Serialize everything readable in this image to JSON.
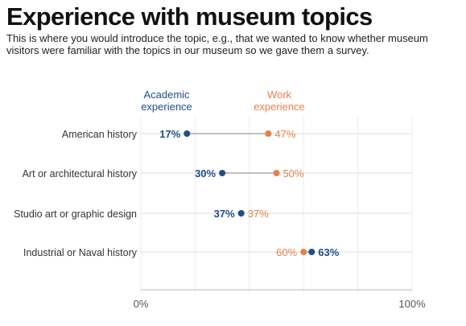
{
  "title": "Experience with museum topics",
  "subtitle": "This is where you would introduce the topic, e.g., that we wanted to know whether museum visitors were familiar with the topics in our museum so we gave them a survey.",
  "colors": {
    "academic": "#1f4e8c",
    "work": "#e8804a",
    "grid": "#dddddd",
    "connector": "#aaaaaa",
    "category_text": "#333333",
    "axis_text": "#555555"
  },
  "chart_data": {
    "type": "dot-plot",
    "xlim": [
      0,
      100
    ],
    "x_unit": "%",
    "tick_labels": [
      "0%",
      "100%"
    ],
    "categories": [
      "American history",
      "Art or architectural history",
      "Studio art or graphic design",
      "Industrial or Naval history"
    ],
    "series": [
      {
        "name": "Academic\nexperience",
        "values": [
          17,
          30,
          37,
          63
        ]
      },
      {
        "name": "Work\nexperience",
        "values": [
          47,
          50,
          37,
          60
        ]
      }
    ],
    "value_labels": [
      [
        "17%",
        "30%",
        "37%",
        "63%"
      ],
      [
        "47%",
        "50%",
        "37%",
        "60%"
      ]
    ],
    "legend_placement": "top-center, above rows"
  }
}
